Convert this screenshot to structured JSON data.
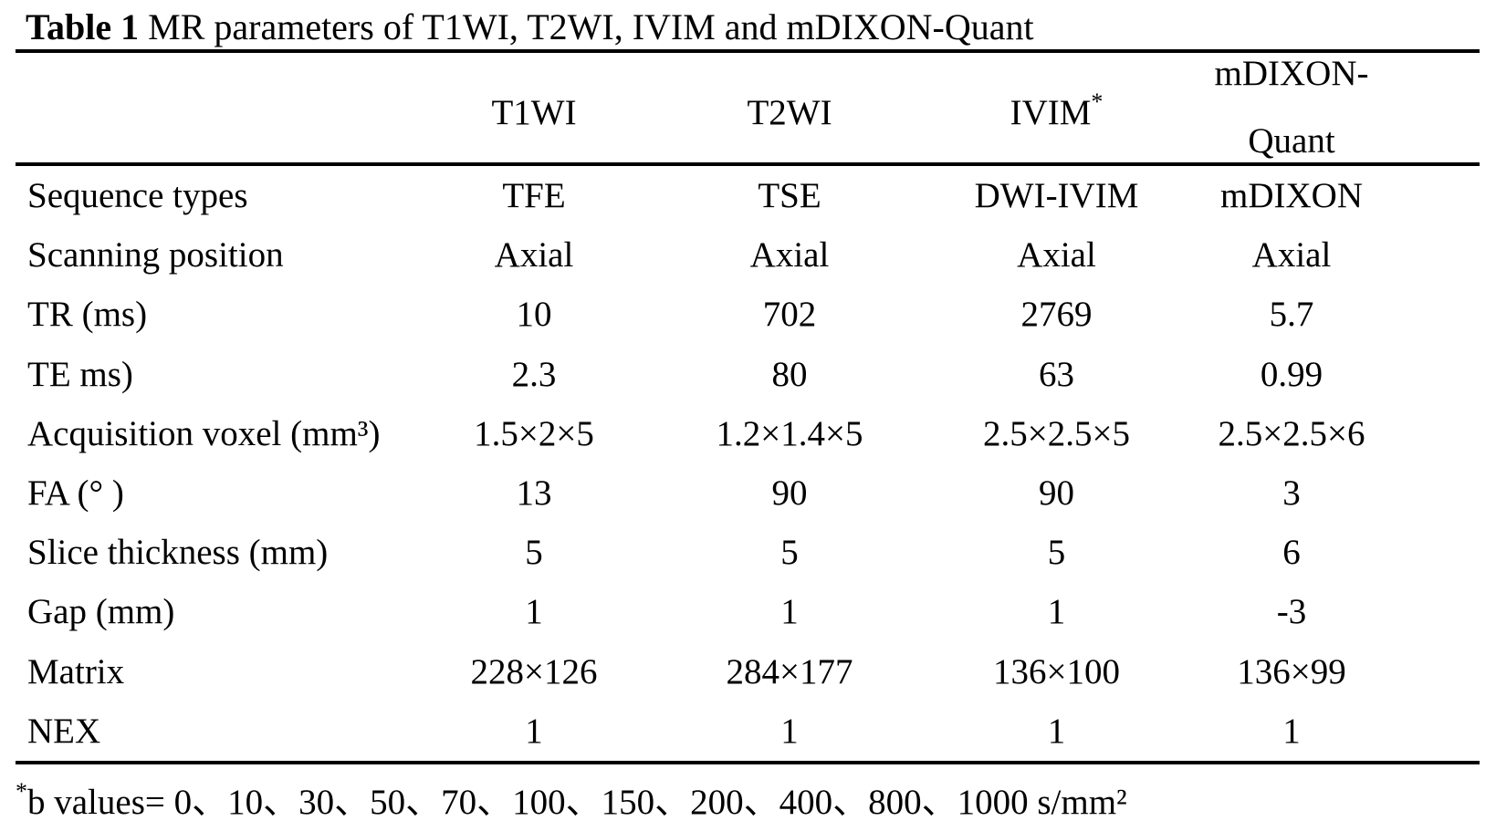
{
  "page": {
    "background_color": "#ffffff",
    "text_color": "#000000"
  },
  "table": {
    "title": {
      "bold": "Table 1",
      "rest": " MR parameters of T1WI, T2WI, IVIM and mDIXON-Quant"
    },
    "columns": [
      {
        "label": "",
        "sup": ""
      },
      {
        "label": "T1WI",
        "sup": ""
      },
      {
        "label": "T2WI",
        "sup": ""
      },
      {
        "label": "IVIM",
        "sup": "*"
      },
      {
        "label": "mDIXON-\nQuant",
        "sup": ""
      }
    ],
    "rows": [
      {
        "label": "Sequence types",
        "values": [
          "TFE",
          "TSE",
          "DWI-IVIM",
          "mDIXON"
        ]
      },
      {
        "label": "Scanning position",
        "values": [
          "Axial",
          "Axial",
          "Axial",
          "Axial"
        ]
      },
      {
        "label": "TR (ms)",
        "values": [
          "10",
          "702",
          "2769",
          "5.7"
        ]
      },
      {
        "label": "TE ms)",
        "values": [
          "2.3",
          "80",
          "63",
          "0.99"
        ]
      },
      {
        "label": "Acquisition voxel (mm³)",
        "values": [
          "1.5×2×5",
          "1.2×1.4×5",
          "2.5×2.5×5",
          "2.5×2.5×6"
        ]
      },
      {
        "label": "FA (° )",
        "values": [
          "13",
          "90",
          "90",
          "3"
        ]
      },
      {
        "label": "Slice thickness (mm)",
        "values": [
          "5",
          "5",
          "5",
          "6"
        ]
      },
      {
        "label": "Gap (mm)",
        "values": [
          "1",
          "1",
          "1",
          "-3"
        ]
      },
      {
        "label": "Matrix",
        "values": [
          "228×126",
          "284×177",
          "136×100",
          "136×99"
        ]
      },
      {
        "label": "NEX",
        "values": [
          "1",
          "1",
          "1",
          "1"
        ]
      }
    ],
    "footnote": {
      "marker": "*",
      "text": "b values= 0、10、30、50、70、100、150、200、400、800、1000 s/mm²"
    }
  }
}
